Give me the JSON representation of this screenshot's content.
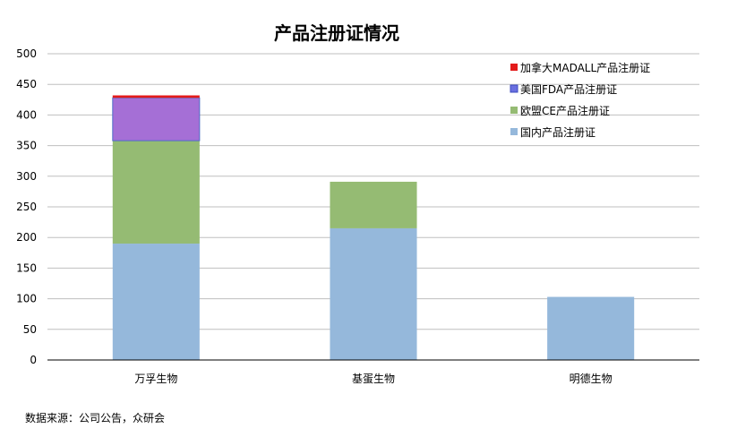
{
  "chart_data": {
    "type": "bar",
    "stacked": true,
    "title": "产品注册证情况",
    "categories": [
      "万孚生物",
      "基蛋生物",
      "明德生物"
    ],
    "series": [
      {
        "name": "国内产品注册证",
        "color": "#95b8db",
        "values": [
          190,
          215,
          103
        ]
      },
      {
        "name": "欧盟CE产品注册证",
        "color": "#95bb73",
        "values": [
          168,
          76,
          0
        ]
      },
      {
        "name": "美国FDA产品注册证",
        "color": "#a56fd6",
        "values": [
          70,
          0,
          0
        ]
      },
      {
        "name": "加拿大MADALL产品注册证",
        "color": "#e31b1b",
        "values": [
          4,
          0,
          0
        ]
      }
    ],
    "ylim": [
      0,
      500
    ],
    "yticks": [
      0,
      50,
      100,
      150,
      200,
      250,
      300,
      350,
      400,
      450,
      500
    ],
    "grid": true,
    "legend_position": "top-right",
    "legend_order": [
      "加拿大MADALL产品注册证",
      "美国FDA产品注册证",
      "欧盟CE产品注册证",
      "国内产品注册证"
    ]
  },
  "source": "数据来源：公司公告，众研会"
}
